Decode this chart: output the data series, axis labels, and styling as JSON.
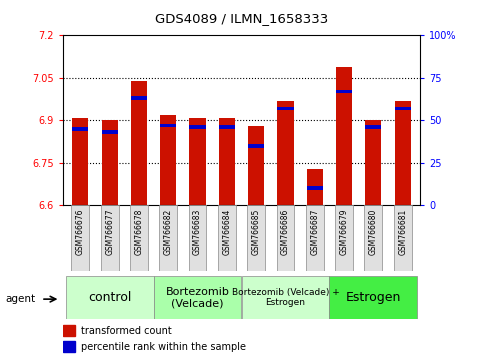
{
  "title": "GDS4089 / ILMN_1658333",
  "samples": [
    "GSM766676",
    "GSM766677",
    "GSM766678",
    "GSM766682",
    "GSM766683",
    "GSM766684",
    "GSM766685",
    "GSM766686",
    "GSM766687",
    "GSM766679",
    "GSM766680",
    "GSM766681"
  ],
  "transformed_count": [
    6.91,
    6.9,
    7.04,
    6.92,
    6.91,
    6.91,
    6.88,
    6.97,
    6.73,
    7.09,
    6.9,
    6.97
  ],
  "percentile_rank": [
    45,
    43,
    63,
    47,
    46,
    46,
    35,
    57,
    10,
    67,
    46,
    57
  ],
  "groups": [
    {
      "label": "control",
      "start": 0,
      "end": 3,
      "color": "#ccffcc",
      "fontsize": 9
    },
    {
      "label": "Bortezomib\n(Velcade)",
      "start": 3,
      "end": 6,
      "color": "#aaffaa",
      "fontsize": 8
    },
    {
      "label": "Bortezomib (Velcade) +\nEstrogen",
      "start": 6,
      "end": 9,
      "color": "#ccffcc",
      "fontsize": 6.5
    },
    {
      "label": "Estrogen",
      "start": 9,
      "end": 12,
      "color": "#44ee44",
      "fontsize": 9
    }
  ],
  "ylim_left": [
    6.6,
    7.2
  ],
  "ylim_right": [
    0,
    100
  ],
  "yticks_left": [
    6.6,
    6.75,
    6.9,
    7.05,
    7.2
  ],
  "yticks_right": [
    0,
    25,
    50,
    75,
    100
  ],
  "bar_color": "#cc1100",
  "blue_color": "#0000cc",
  "bar_width": 0.55,
  "bg_color": "#e0e0e0",
  "legend_items": [
    "transformed count",
    "percentile rank within the sample"
  ]
}
